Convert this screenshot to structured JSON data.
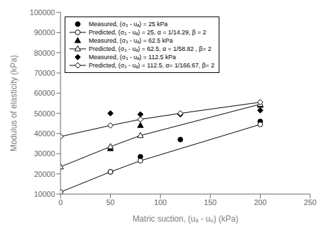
{
  "chart_data": {
    "type": "line",
    "xlabel": "Matric suction, (uₐ - uᵤ) (kPa)",
    "ylabel": "Modulus of elasticity (kPa)",
    "xlim": [
      0,
      250
    ],
    "ylim": [
      10000,
      100000
    ],
    "xticks": [
      0,
      50,
      100,
      150,
      200,
      250
    ],
    "yticks": [
      10000,
      20000,
      30000,
      40000,
      50000,
      60000,
      70000,
      80000,
      90000,
      100000
    ],
    "grid": false,
    "legend": "upper left",
    "series": [
      {
        "name": "Measured, (σ₃ - uₐ) = 25 kPa",
        "type": "scatter",
        "color": "#000000",
        "marker": "circle",
        "line_style": "none",
        "x": [
          50,
          80,
          120,
          200
        ],
        "values": [
          21000,
          28500,
          37000,
          46000
        ]
      },
      {
        "name": "Predicted, (σ₃ - uₐ) = 25, α = 1/14.29, β = 2",
        "type": "line",
        "color": "#000000",
        "marker": "circle_open",
        "line_style": "solid",
        "x": [
          0,
          50,
          80,
          200
        ],
        "values": [
          11000,
          21000,
          26500,
          44500
        ]
      },
      {
        "name": "Measured, (σ₃ - uₐ) = 62.5 kPa",
        "type": "scatter",
        "color": "#000000",
        "marker": "triangle",
        "line_style": "none",
        "x": [
          50,
          80,
          200
        ],
        "values": [
          32500,
          44000,
          54000
        ]
      },
      {
        "name": "Predicted, (σ₃ - uₐ) = 62.5, α = 1/58.82 , β= 2",
        "type": "line",
        "color": "#000000",
        "marker": "triangle_open",
        "line_style": "solid",
        "x": [
          0,
          50,
          80,
          200
        ],
        "values": [
          23500,
          33500,
          39000,
          54500
        ]
      },
      {
        "name": "Measured, (σ₃ - uₐ) = 112.5 kPa",
        "type": "scatter",
        "color": "#000000",
        "marker": "diamond",
        "line_style": "none",
        "x": [
          50,
          80,
          120,
          200
        ],
        "values": [
          50000,
          49500,
          49500,
          51500
        ]
      },
      {
        "name": "Predicted, (σ₃ - uₐ) = 112.5, α= 1/166.67, β= 2",
        "type": "line",
        "color": "#000000",
        "marker": "diamond_open",
        "line_style": "solid",
        "x": [
          0,
          50,
          80,
          120,
          200
        ],
        "values": [
          38500,
          44000,
          47000,
          50000,
          55500
        ]
      }
    ]
  }
}
